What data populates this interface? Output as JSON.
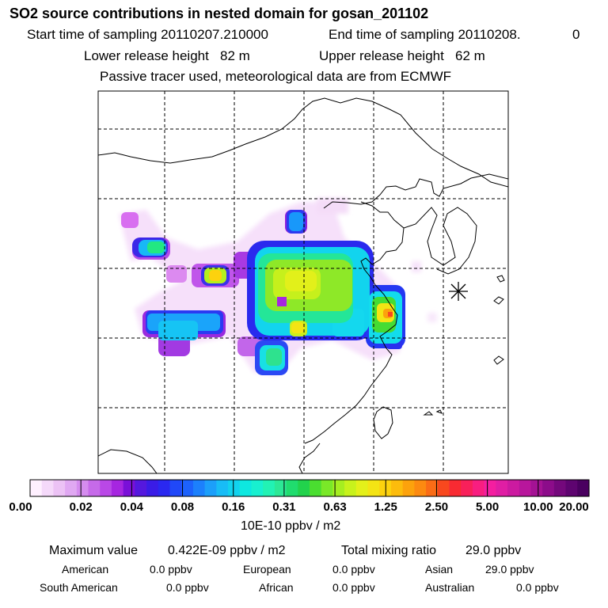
{
  "header": {
    "title": "SO2 source contributions in nested domain for gosan_201102",
    "start_label": "Start time of sampling 20110207.210000",
    "end_label": "End time of sampling 20110208.",
    "end_suffix": "0",
    "lower_height_label": "Lower release height   82 m",
    "upper_height_label": "Upper release height   62 m",
    "passive_note": "Passive tracer used, meteorological data are from ECMWF"
  },
  "colorbar": {
    "ticks": [
      "0.00",
      "0.02",
      "0.04",
      "0.08",
      "0.16",
      "0.31",
      "0.63",
      "1.25",
      "2.50",
      "5.00",
      "10.00",
      "20.00"
    ],
    "units": "10E-10 ppbv / m2",
    "colors": [
      "#fff0ff",
      "#f5d9fa",
      "#ecc2f5",
      "#e0a8f2",
      "#d58cef",
      "#c66ae9",
      "#b948e6",
      "#a626e0",
      "#7a10d8",
      "#5518de",
      "#3a1ce6",
      "#2a28f0",
      "#2048f8",
      "#1d62fc",
      "#1c80fc",
      "#1c9ffa",
      "#18bcf6",
      "#12d2ee",
      "#0ee8e0",
      "#18f0d0",
      "#22f2b4",
      "#2ce896",
      "#20dc6e",
      "#22d24c",
      "#4ade30",
      "#7ae828",
      "#a6ee20",
      "#c8f21c",
      "#e4f01a",
      "#f4e414",
      "#fcd20e",
      "#fcbc0c",
      "#fca20c",
      "#fc8a10",
      "#fa6c16",
      "#f8481e",
      "#f82a32",
      "#f8205a",
      "#f81e80",
      "#f41ea0",
      "#e01ea4",
      "#cc1aa0",
      "#b8169c",
      "#a41294",
      "#8c0c8a",
      "#74087c",
      "#5e0470",
      "#4a0060"
    ]
  },
  "chart_data": {
    "type": "heatmap",
    "title": "SO2 source contributions in nested domain for gosan_201102",
    "colorbar_label": "10E-10 ppbv / m2",
    "colorbar_levels": [
      0.0,
      0.02,
      0.04,
      0.08,
      0.16,
      0.31,
      0.63,
      1.25,
      2.5,
      5.0,
      10.0,
      20.0
    ],
    "max_value": "0.422E-09 ppbv / m2",
    "receptor_marker": "Gosan (asterisk)",
    "region": "East Asia (eastern China, Korea)"
  },
  "summary": {
    "max_label": "Maximum value",
    "max_value": "0.422E-09 ppbv / m2",
    "total_label": "Total mixing ratio",
    "total_value": "29.0 ppbv"
  },
  "regions": [
    {
      "name": "American",
      "value": "0.0 ppbv"
    },
    {
      "name": "European",
      "value": "0.0 ppbv"
    },
    {
      "name": "Asian",
      "value": "29.0 ppbv"
    },
    {
      "name": "South American",
      "value": "0.0 ppbv"
    },
    {
      "name": "African",
      "value": "0.0 ppbv"
    },
    {
      "name": "Australian",
      "value": "0.0 ppbv"
    }
  ]
}
